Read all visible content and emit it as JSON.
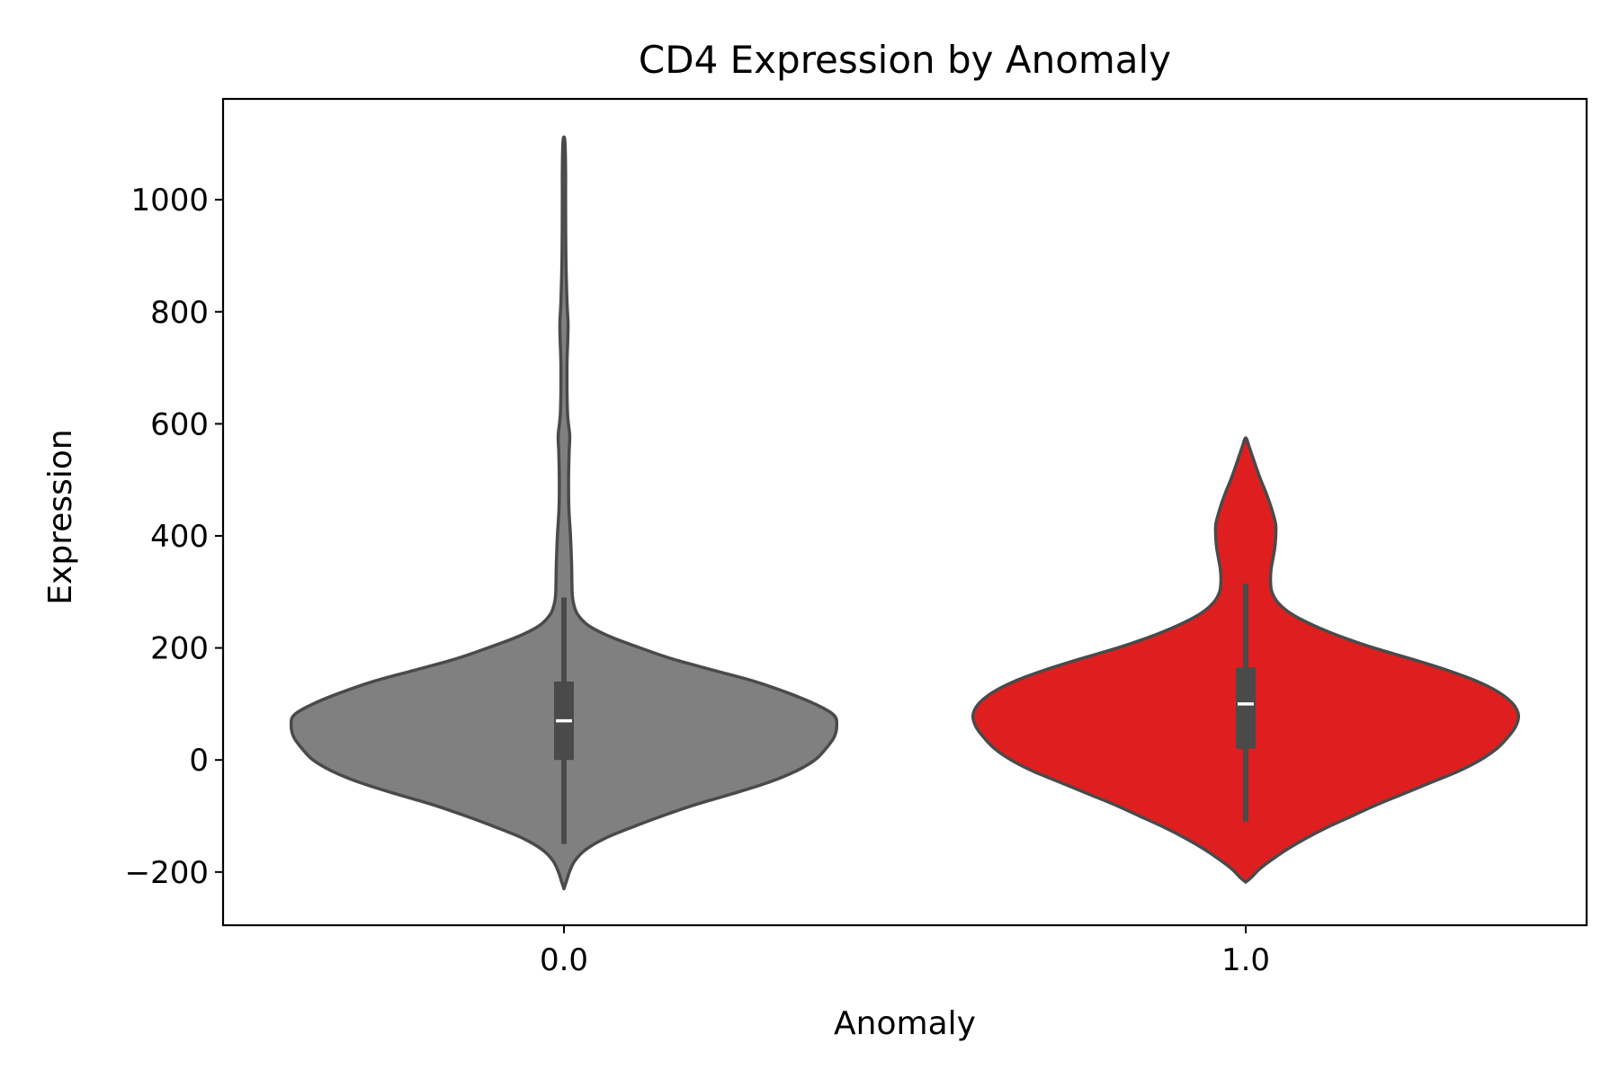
{
  "chart_data": {
    "type": "violin",
    "title": "CD4 Expression by Anomaly",
    "xlabel": "Anomaly",
    "ylabel": "Expression",
    "ylim": [
      -295,
      1180
    ],
    "yticks": [
      -200,
      0,
      200,
      400,
      600,
      800,
      1000
    ],
    "ytick_labels": [
      "−200",
      "0",
      "200",
      "400",
      "600",
      "800",
      "1000"
    ],
    "categories": [
      "0.0",
      "1.0"
    ],
    "grid": false,
    "legend": "none",
    "series": [
      {
        "category": "0.0",
        "color": "#808080",
        "outline": "#4a4a4a",
        "min": -150,
        "q1": 0,
        "median": 70,
        "q3": 140,
        "max": 290,
        "density": [
          [
            -230,
            0.0
          ],
          [
            -215,
            0.01
          ],
          [
            -200,
            0.02
          ],
          [
            -180,
            0.04
          ],
          [
            -160,
            0.08
          ],
          [
            -140,
            0.15
          ],
          [
            -120,
            0.25
          ],
          [
            -100,
            0.36
          ],
          [
            -80,
            0.48
          ],
          [
            -60,
            0.62
          ],
          [
            -40,
            0.75
          ],
          [
            -20,
            0.85
          ],
          [
            0,
            0.92
          ],
          [
            20,
            0.96
          ],
          [
            40,
            0.99
          ],
          [
            60,
            1.0
          ],
          [
            80,
            0.99
          ],
          [
            100,
            0.92
          ],
          [
            120,
            0.82
          ],
          [
            140,
            0.7
          ],
          [
            160,
            0.55
          ],
          [
            180,
            0.4
          ],
          [
            200,
            0.28
          ],
          [
            220,
            0.17
          ],
          [
            240,
            0.09
          ],
          [
            260,
            0.05
          ],
          [
            280,
            0.035
          ],
          [
            300,
            0.03
          ],
          [
            350,
            0.028
          ],
          [
            400,
            0.024
          ],
          [
            450,
            0.018
          ],
          [
            500,
            0.017
          ],
          [
            550,
            0.019
          ],
          [
            580,
            0.021
          ],
          [
            620,
            0.013
          ],
          [
            700,
            0.011
          ],
          [
            750,
            0.014
          ],
          [
            780,
            0.015
          ],
          [
            820,
            0.011
          ],
          [
            900,
            0.007
          ],
          [
            1000,
            0.006
          ],
          [
            1050,
            0.006
          ],
          [
            1100,
            0.004
          ],
          [
            1112,
            0.0
          ]
        ]
      },
      {
        "category": "1.0",
        "color": "#df1f1f",
        "outline": "#4a4a4a",
        "min": -110,
        "q1": 20,
        "median": 100,
        "q3": 165,
        "max": 315,
        "density": [
          [
            -218,
            0.0
          ],
          [
            -210,
            0.02
          ],
          [
            -195,
            0.05
          ],
          [
            -180,
            0.09
          ],
          [
            -160,
            0.15
          ],
          [
            -140,
            0.22
          ],
          [
            -120,
            0.3
          ],
          [
            -100,
            0.39
          ],
          [
            -80,
            0.48
          ],
          [
            -60,
            0.58
          ],
          [
            -40,
            0.68
          ],
          [
            -20,
            0.78
          ],
          [
            0,
            0.86
          ],
          [
            20,
            0.92
          ],
          [
            40,
            0.96
          ],
          [
            60,
            0.99
          ],
          [
            80,
            1.0
          ],
          [
            100,
            0.98
          ],
          [
            120,
            0.93
          ],
          [
            140,
            0.85
          ],
          [
            160,
            0.74
          ],
          [
            180,
            0.61
          ],
          [
            200,
            0.47
          ],
          [
            220,
            0.35
          ],
          [
            240,
            0.25
          ],
          [
            260,
            0.17
          ],
          [
            280,
            0.12
          ],
          [
            300,
            0.096
          ],
          [
            320,
            0.091
          ],
          [
            340,
            0.093
          ],
          [
            360,
            0.1
          ],
          [
            380,
            0.107
          ],
          [
            400,
            0.11
          ],
          [
            420,
            0.11
          ],
          [
            440,
            0.1
          ],
          [
            460,
            0.087
          ],
          [
            480,
            0.072
          ],
          [
            500,
            0.055
          ],
          [
            520,
            0.04
          ],
          [
            540,
            0.026
          ],
          [
            560,
            0.012
          ],
          [
            575,
            0.0
          ]
        ]
      }
    ]
  }
}
